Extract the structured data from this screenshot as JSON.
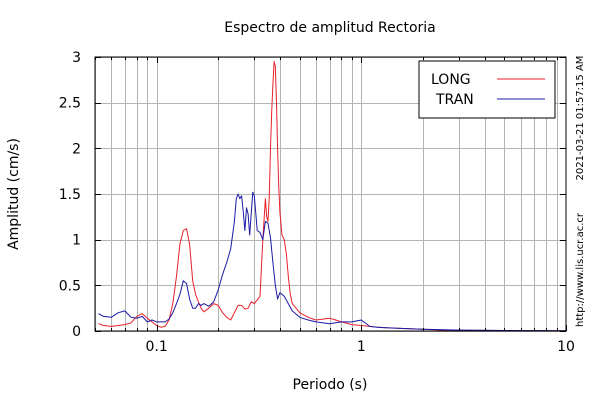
{
  "chart_data": {
    "type": "line",
    "title": "Espectro de amplitud Rectoria",
    "xlabel": "Periodo (s)",
    "ylabel": "Amplitud (cm/s)",
    "x_scale": "log",
    "xlim": [
      0.05,
      10
    ],
    "ylim": [
      0,
      3
    ],
    "x_ticks": [
      0.1,
      1,
      10
    ],
    "x_tick_labels": [
      "0.1",
      "1",
      "10"
    ],
    "y_ticks": [
      0,
      0.5,
      1,
      1.5,
      2,
      2.5,
      3
    ],
    "y_tick_labels": [
      "0",
      "0.5",
      "1",
      "1.5",
      "2",
      "2.5",
      "3"
    ],
    "grid": true,
    "legend_position": "top-right",
    "timestamp": "2021-03-21 01:57:15 AM",
    "source_url": "http://www.lis.ucr.ac.cr",
    "series": [
      {
        "name": "LONG",
        "color": "#e8202a",
        "x": [
          0.052,
          0.055,
          0.06,
          0.065,
          0.07,
          0.075,
          0.08,
          0.085,
          0.09,
          0.095,
          0.1,
          0.105,
          0.11,
          0.115,
          0.12,
          0.125,
          0.13,
          0.135,
          0.14,
          0.145,
          0.15,
          0.155,
          0.16,
          0.165,
          0.17,
          0.18,
          0.19,
          0.2,
          0.21,
          0.22,
          0.23,
          0.24,
          0.25,
          0.26,
          0.27,
          0.28,
          0.29,
          0.3,
          0.31,
          0.32,
          0.33,
          0.34,
          0.345,
          0.35,
          0.355,
          0.36,
          0.365,
          0.37,
          0.375,
          0.38,
          0.385,
          0.39,
          0.395,
          0.4,
          0.41,
          0.42,
          0.43,
          0.44,
          0.45,
          0.46,
          0.48,
          0.5,
          0.55,
          0.6,
          0.65,
          0.7,
          0.75,
          0.8,
          0.9,
          1.0,
          1.1,
          1.2,
          1.5,
          2.0,
          2.5,
          3.0,
          5.0,
          10.0
        ],
        "y": [
          0.08,
          0.06,
          0.05,
          0.06,
          0.07,
          0.09,
          0.16,
          0.19,
          0.14,
          0.1,
          0.06,
          0.04,
          0.05,
          0.12,
          0.3,
          0.6,
          0.95,
          1.1,
          1.12,
          0.95,
          0.55,
          0.4,
          0.32,
          0.25,
          0.21,
          0.25,
          0.3,
          0.28,
          0.2,
          0.15,
          0.12,
          0.2,
          0.28,
          0.28,
          0.24,
          0.25,
          0.32,
          0.3,
          0.34,
          0.38,
          1.0,
          1.45,
          1.25,
          1.2,
          1.45,
          2.0,
          2.4,
          2.7,
          2.95,
          2.9,
          2.5,
          2.0,
          1.6,
          1.3,
          1.05,
          1.0,
          0.85,
          0.6,
          0.4,
          0.3,
          0.25,
          0.2,
          0.15,
          0.12,
          0.13,
          0.14,
          0.12,
          0.1,
          0.07,
          0.06,
          0.05,
          0.04,
          0.03,
          0.02,
          0.01,
          0.01,
          0.005,
          0.003
        ]
      },
      {
        "name": "TRAN",
        "color": "#1a1aa6",
        "x": [
          0.052,
          0.055,
          0.06,
          0.065,
          0.07,
          0.075,
          0.08,
          0.085,
          0.09,
          0.095,
          0.1,
          0.105,
          0.11,
          0.115,
          0.12,
          0.125,
          0.13,
          0.135,
          0.14,
          0.145,
          0.15,
          0.155,
          0.16,
          0.165,
          0.17,
          0.18,
          0.19,
          0.2,
          0.21,
          0.22,
          0.23,
          0.24,
          0.245,
          0.25,
          0.255,
          0.26,
          0.265,
          0.27,
          0.275,
          0.28,
          0.285,
          0.29,
          0.295,
          0.3,
          0.305,
          0.31,
          0.32,
          0.33,
          0.34,
          0.35,
          0.36,
          0.37,
          0.38,
          0.39,
          0.4,
          0.42,
          0.44,
          0.46,
          0.5,
          0.55,
          0.6,
          0.7,
          0.8,
          0.9,
          1.0,
          1.1,
          1.2,
          1.5,
          2.0,
          3.0,
          5.0,
          10.0
        ],
        "y": [
          0.19,
          0.16,
          0.15,
          0.2,
          0.22,
          0.15,
          0.14,
          0.16,
          0.1,
          0.12,
          0.1,
          0.1,
          0.1,
          0.13,
          0.2,
          0.3,
          0.4,
          0.55,
          0.52,
          0.35,
          0.25,
          0.25,
          0.3,
          0.28,
          0.3,
          0.27,
          0.32,
          0.45,
          0.62,
          0.75,
          0.9,
          1.2,
          1.45,
          1.5,
          1.45,
          1.48,
          1.3,
          1.1,
          1.35,
          1.28,
          1.05,
          1.3,
          1.52,
          1.48,
          1.3,
          1.1,
          1.08,
          1.0,
          1.2,
          1.18,
          1.02,
          0.75,
          0.5,
          0.35,
          0.42,
          0.38,
          0.3,
          0.22,
          0.15,
          0.12,
          0.1,
          0.08,
          0.1,
          0.1,
          0.12,
          0.05,
          0.04,
          0.03,
          0.02,
          0.01,
          0.005,
          0.003
        ]
      }
    ]
  }
}
